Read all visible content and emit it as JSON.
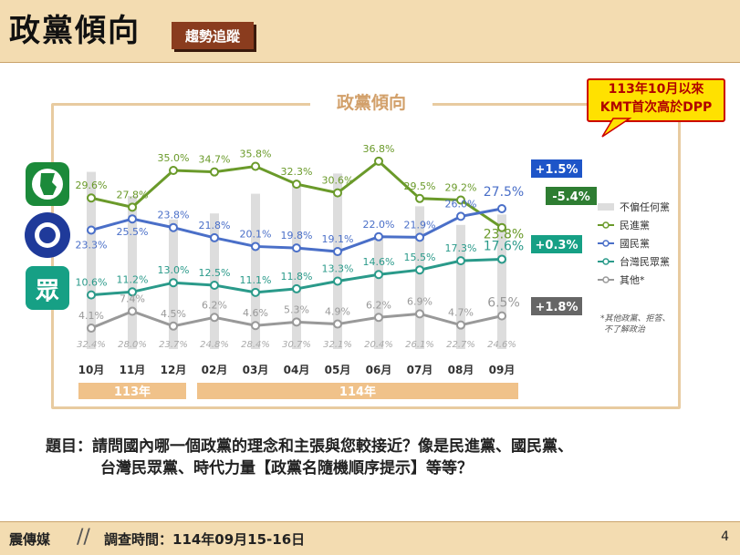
{
  "header": {
    "title": "政黨傾向",
    "badge": "趨勢追蹤"
  },
  "panel_title": "政黨傾向",
  "callout": {
    "line1": "113年10月以來",
    "line2": "KMT首次高於DPP"
  },
  "question": {
    "line1": "題目：請問國內哪一個政黨的理念和主張與您較接近？像是民進黨、國民黨、",
    "line2": "台灣民眾黨、時代力量【政黨名隨機順序提示】等等？"
  },
  "footer": {
    "brand": "震傳媒",
    "date": "調查時間：114年09月15-16日",
    "page": "4"
  },
  "legend_note": [
    "*其他政黨、拒答、",
    "不了解政治"
  ],
  "years": [
    "113年",
    "114年"
  ],
  "chart_data": {
    "type": "line",
    "categories": [
      "10月",
      "11月",
      "12月",
      "02月",
      "03月",
      "04月",
      "05月",
      "06月",
      "07月",
      "08月",
      "09月"
    ],
    "series": [
      {
        "name": "不偏任何黨",
        "type": "bar",
        "color": "#dddddd",
        "values": [
          32.4,
          28.0,
          23.7,
          24.8,
          28.4,
          30.7,
          32.1,
          20.4,
          26.1,
          22.7,
          24.6
        ],
        "labels": [
          "32.4%",
          "28.0%",
          "23.7%",
          "24.8%",
          "28.4%",
          "30.7%",
          "32.1%",
          "20.4%",
          "26.1%",
          "22.7%",
          "24.6%"
        ]
      },
      {
        "name": "民進黨",
        "color": "#6a9a2a",
        "values": [
          29.6,
          27.8,
          35.0,
          34.7,
          35.8,
          32.3,
          30.6,
          36.8,
          29.5,
          29.2,
          23.8
        ],
        "labels": [
          "29.6%",
          "27.8%",
          "35.0%",
          "34.7%",
          "35.8%",
          "32.3%",
          "30.6%",
          "36.8%",
          "29.5%",
          "29.2%",
          "23.8%"
        ]
      },
      {
        "name": "國民黨",
        "color": "#4a6fc8",
        "values": [
          23.3,
          25.5,
          23.8,
          21.8,
          20.1,
          19.8,
          19.1,
          22.0,
          21.9,
          26.0,
          27.5
        ],
        "labels": [
          "23.3%",
          "25.5%",
          "23.8%",
          "21.8%",
          "20.1%",
          "19.8%",
          "19.1%",
          "22.0%",
          "21.9%",
          "26.0%",
          "27.5%"
        ]
      },
      {
        "name": "台灣民眾黨",
        "color": "#2a9a8a",
        "values": [
          10.6,
          11.2,
          13.0,
          12.5,
          11.1,
          11.8,
          13.3,
          14.6,
          15.5,
          17.3,
          17.6
        ],
        "labels": [
          "10.6%",
          "11.2%",
          "13.0%",
          "12.5%",
          "11.1%",
          "11.8%",
          "13.3%",
          "14.6%",
          "15.5%",
          "17.3%",
          "17.6%"
        ]
      },
      {
        "name": "其他*",
        "color": "#999999",
        "values": [
          4.1,
          7.4,
          4.5,
          6.2,
          4.6,
          5.3,
          4.9,
          6.2,
          6.9,
          4.7,
          6.5
        ],
        "labels": [
          "4.1%",
          "7.4%",
          "4.5%",
          "6.2%",
          "4.6%",
          "5.3%",
          "4.9%",
          "6.2%",
          "6.9%",
          "4.7%",
          "6.5%"
        ]
      }
    ],
    "changes": [
      {
        "label": "+1.5%",
        "color": "#1e55c8"
      },
      {
        "label": "-5.4%",
        "color": "#2e7d32"
      },
      {
        "label": "+0.3%",
        "color": "#16a085"
      },
      {
        "label": "+1.8%",
        "color": "#666666"
      }
    ]
  }
}
